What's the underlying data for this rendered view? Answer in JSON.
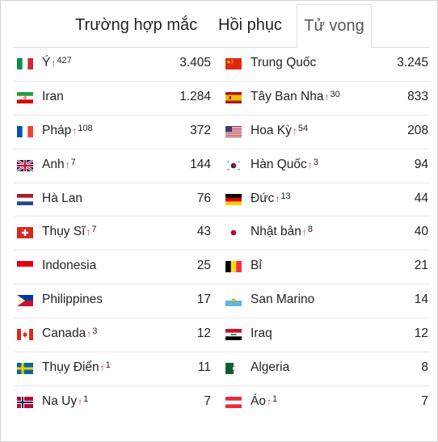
{
  "tabs": [
    {
      "label": "Trường hợp mắc",
      "active": false
    },
    {
      "label": "Hồi phục",
      "active": false
    },
    {
      "label": "Tử vong",
      "active": true
    }
  ],
  "rows": [
    {
      "left": {
        "flag": "italy-flag",
        "name": "Ý",
        "increase": "427",
        "value": "3.405"
      },
      "right": {
        "flag": "china-flag",
        "name": "Trung Quốc",
        "increase": "",
        "value": "3.245"
      }
    },
    {
      "left": {
        "flag": "iran-flag",
        "name": "Iran",
        "increase": "",
        "value": "1.284"
      },
      "right": {
        "flag": "spain-flag",
        "name": "Tây Ban Nha",
        "increase": "30",
        "value": "833"
      }
    },
    {
      "left": {
        "flag": "france-flag",
        "name": "Pháp",
        "increase": "108",
        "value": "372"
      },
      "right": {
        "flag": "usa-flag",
        "name": "Hoa Kỳ",
        "increase": "54",
        "value": "208"
      }
    },
    {
      "left": {
        "flag": "uk-flag",
        "name": "Anh",
        "increase": "7",
        "value": "144"
      },
      "right": {
        "flag": "south-korea-flag",
        "name": "Hàn Quốc",
        "increase": "3",
        "value": "94"
      }
    },
    {
      "left": {
        "flag": "netherlands-flag",
        "name": "Hà Lan",
        "increase": "",
        "value": "76"
      },
      "right": {
        "flag": "germany-flag",
        "name": "Đức",
        "increase": "13",
        "value": "44"
      }
    },
    {
      "left": {
        "flag": "switzerland-flag",
        "name": "Thụy Sĩ",
        "increase": "7",
        "value": "43"
      },
      "right": {
        "flag": "japan-flag",
        "name": "Nhật bản",
        "increase": "8",
        "value": "40"
      }
    },
    {
      "left": {
        "flag": "indonesia-flag",
        "name": "Indonesia",
        "increase": "",
        "value": "25"
      },
      "right": {
        "flag": "belgium-flag",
        "name": "Bỉ",
        "increase": "",
        "value": "21"
      }
    },
    {
      "left": {
        "flag": "philippines-flag",
        "name": "Philippines",
        "increase": "",
        "value": "17"
      },
      "right": {
        "flag": "san-marino-flag",
        "name": "San Marino",
        "increase": "",
        "value": "14"
      }
    },
    {
      "left": {
        "flag": "canada-flag",
        "name": "Canada",
        "increase": "3",
        "value": "12"
      },
      "right": {
        "flag": "iraq-flag",
        "name": "Iraq",
        "increase": "",
        "value": "12"
      }
    },
    {
      "left": {
        "flag": "sweden-flag",
        "name": "Thụy Điển",
        "increase": "1",
        "value": "11"
      },
      "right": {
        "flag": "algeria-flag",
        "name": "Algeria",
        "increase": "",
        "value": "8"
      }
    },
    {
      "left": {
        "flag": "norway-flag",
        "name": "Na Uy",
        "increase": "1",
        "value": "7"
      },
      "right": {
        "flag": "austria-flag",
        "name": "Áo",
        "increase": "1",
        "value": "7"
      }
    }
  ],
  "increase_arrow_color": "#d93025"
}
